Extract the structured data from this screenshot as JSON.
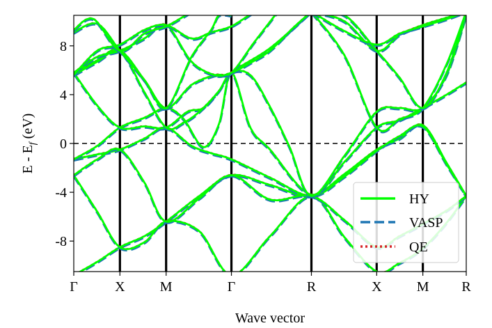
{
  "chart_data": {
    "type": "line",
    "title": "",
    "xlabel": "Wave vector",
    "ylabel_main": "E - E",
    "ylabel_sub": "f",
    "ylabel_unit": " (eV)",
    "ylim": [
      -10.5,
      10.5
    ],
    "xlim": [
      0,
      1
    ],
    "yticks": [
      {
        "value": 8,
        "label": "8"
      },
      {
        "value": 4,
        "label": "4"
      },
      {
        "value": 0,
        "label": "0"
      },
      {
        "value": -4,
        "label": "-4"
      },
      {
        "value": -8,
        "label": "-8"
      }
    ],
    "kpoints": [
      {
        "label": "Γ",
        "pos": 0.0
      },
      {
        "label": "X",
        "pos": 0.1176
      },
      {
        "label": "M",
        "pos": 0.2353
      },
      {
        "label": "Γ",
        "pos": 0.4017
      },
      {
        "label": "R",
        "pos": 0.6055
      },
      {
        "label": "X",
        "pos": 0.7718
      },
      {
        "label": "M",
        "pos": 0.8894
      },
      {
        "label": "R",
        "pos": 1.0
      }
    ],
    "fermi_level": 0,
    "legend": {
      "position": "bottom-right",
      "entries": [
        {
          "name": "HY",
          "color": "#00ff00",
          "style": "solid"
        },
        {
          "name": "VASP",
          "color": "#1f77b4",
          "style": "dashed"
        },
        {
          "name": "QE",
          "color": "#d62728",
          "style": "dotted"
        }
      ]
    },
    "colors": {
      "HY": "#00ff00",
      "VASP": "#1f77b4",
      "QE": "#d62728"
    },
    "bands": [
      {
        "name": "band-1",
        "points": [
          [
            0,
            -10.8
          ],
          [
            0.06,
            -9.7
          ],
          [
            0.1176,
            -8.5
          ],
          [
            0.18,
            -7.6
          ],
          [
            0.2353,
            -6.4
          ],
          [
            0.32,
            -4.3
          ],
          [
            0.4017,
            -2.6
          ],
          [
            0.5,
            -3.4
          ],
          [
            0.6055,
            -4.3
          ],
          [
            0.69,
            -2.5
          ],
          [
            0.7718,
            -0.5
          ],
          [
            0.83,
            0.4
          ],
          [
            0.8894,
            1.5
          ],
          [
            0.95,
            -1.6
          ],
          [
            1.0,
            -4.3
          ]
        ]
      },
      {
        "name": "band-2",
        "points": [
          [
            0,
            -2.6
          ],
          [
            0.06,
            -5.6
          ],
          [
            0.1176,
            -8.5
          ],
          [
            0.18,
            -8.1
          ],
          [
            0.2353,
            -6.4
          ],
          [
            0.32,
            -7.2
          ],
          [
            0.4017,
            -10.8
          ],
          [
            0.5,
            -7.6
          ],
          [
            0.6055,
            -4.3
          ],
          [
            0.69,
            -7.7
          ],
          [
            0.7718,
            -10.5
          ],
          [
            0.83,
            -9.8
          ],
          [
            0.8894,
            -8.6
          ],
          [
            0.95,
            -6.5
          ],
          [
            1.0,
            -4.3
          ]
        ]
      },
      {
        "name": "band-3",
        "points": [
          [
            0,
            -1.3
          ],
          [
            0.06,
            -0.9
          ],
          [
            0.1176,
            -0.5
          ],
          [
            0.18,
            0.4
          ],
          [
            0.2353,
            1.3
          ],
          [
            0.3,
            -0.2
          ],
          [
            0.35,
            -0.8
          ],
          [
            0.4017,
            -1.3
          ],
          [
            0.5,
            -2.8
          ],
          [
            0.6055,
            -4.3
          ],
          [
            0.69,
            -2.7
          ],
          [
            0.7718,
            -0.6
          ],
          [
            0.83,
            0.6
          ],
          [
            0.8894,
            1.4
          ],
          [
            0.95,
            -1.7
          ],
          [
            1.0,
            -4.3
          ]
        ]
      },
      {
        "name": "band-4",
        "points": [
          [
            0,
            -2.6
          ],
          [
            0.06,
            -1.3
          ],
          [
            0.1176,
            -0.5
          ],
          [
            0.18,
            -3.2
          ],
          [
            0.2353,
            -6.4
          ],
          [
            0.32,
            -4.5
          ],
          [
            0.4017,
            -2.6
          ],
          [
            0.5,
            -4.6
          ],
          [
            0.6055,
            -4.3
          ],
          [
            0.69,
            -6.3
          ],
          [
            0.7718,
            -8.5
          ],
          [
            0.83,
            -7.6
          ],
          [
            0.8894,
            -6.6
          ],
          [
            0.95,
            -5.5
          ],
          [
            1.0,
            -4.3
          ]
        ]
      },
      {
        "name": "band-5",
        "points": [
          [
            0,
            -1.3
          ],
          [
            0.06,
            -0.2
          ],
          [
            0.1176,
            1.3
          ],
          [
            0.18,
            2.1
          ],
          [
            0.2353,
            2.9
          ],
          [
            0.28,
            2.0
          ],
          [
            0.33,
            -0.3
          ],
          [
            0.37,
            1.6
          ],
          [
            0.4017,
            5.8
          ],
          [
            0.45,
            1.3
          ],
          [
            0.5,
            -0.5
          ],
          [
            0.6055,
            -4.2
          ],
          [
            0.69,
            -1.5
          ],
          [
            0.7718,
            1.3
          ],
          [
            0.83,
            1.9
          ],
          [
            0.8894,
            2.9
          ],
          [
            0.95,
            4.0
          ],
          [
            1.0,
            5.0
          ]
        ]
      },
      {
        "name": "band-6",
        "points": [
          [
            0,
            5.8
          ],
          [
            0.06,
            3.1
          ],
          [
            0.1176,
            1.3
          ],
          [
            0.18,
            1.4
          ],
          [
            0.2353,
            1.3
          ],
          [
            0.29,
            2.6
          ],
          [
            0.33,
            2.9
          ],
          [
            0.37,
            4.3
          ],
          [
            0.4017,
            5.8
          ],
          [
            0.45,
            5.6
          ],
          [
            0.5,
            3.0
          ],
          [
            0.55,
            -0.3
          ],
          [
            0.6055,
            -4.3
          ],
          [
            0.69,
            -1.0
          ],
          [
            0.7718,
            2.6
          ],
          [
            0.83,
            2.9
          ],
          [
            0.8894,
            2.9
          ],
          [
            0.95,
            5.6
          ],
          [
            1.0,
            10.5
          ]
        ]
      },
      {
        "name": "band-7",
        "points": [
          [
            0,
            5.8
          ],
          [
            0.06,
            6.8
          ],
          [
            0.1176,
            7.6
          ],
          [
            0.18,
            4.2
          ],
          [
            0.2353,
            1.3
          ],
          [
            0.28,
            1.7
          ],
          [
            0.32,
            2.6
          ],
          [
            0.37,
            4.3
          ],
          [
            0.4017,
            5.8
          ],
          [
            0.5,
            7.8
          ],
          [
            0.6055,
            10.8
          ]
        ]
      },
      {
        "name": "band-8",
        "points": [
          [
            0,
            5.6
          ],
          [
            0.06,
            6.7
          ],
          [
            0.1176,
            7.6
          ],
          [
            0.18,
            5.2
          ],
          [
            0.2353,
            2.9
          ],
          [
            0.3,
            4.8
          ],
          [
            0.36,
            5.6
          ],
          [
            0.4017,
            5.8
          ],
          [
            0.46,
            8.3
          ],
          [
            0.52,
            10.8
          ]
        ]
      },
      {
        "name": "band-9",
        "points": [
          [
            0,
            5.8
          ],
          [
            0.06,
            7.1
          ],
          [
            0.1176,
            7.6
          ],
          [
            0.18,
            8.6
          ],
          [
            0.2353,
            9.7
          ],
          [
            0.3,
            6.7
          ],
          [
            0.36,
            5.6
          ],
          [
            0.4017,
            5.8
          ],
          [
            0.45,
            6.6
          ],
          [
            0.5,
            7.6
          ],
          [
            0.56,
            9.5
          ],
          [
            0.6055,
            10.8
          ]
        ]
      },
      {
        "name": "band-10",
        "points": [
          [
            0,
            5.6
          ],
          [
            0.06,
            7.6
          ],
          [
            0.1176,
            8.1
          ],
          [
            0.18,
            9.3
          ],
          [
            0.2353,
            9.7
          ],
          [
            0.3,
            8.6
          ],
          [
            0.35,
            9.1
          ],
          [
            0.4017,
            9.6
          ],
          [
            0.46,
            10.8
          ]
        ]
      },
      {
        "name": "band-11",
        "points": [
          [
            0,
            9.1
          ],
          [
            0.06,
            9.8
          ],
          [
            0.1176,
            7.6
          ],
          [
            0.18,
            5.2
          ],
          [
            0.2353,
            2.9
          ],
          [
            0.3,
            7.1
          ],
          [
            0.35,
            9.3
          ],
          [
            0.37,
            10.5
          ],
          [
            0.4017,
            10.5
          ]
        ]
      },
      {
        "name": "band-12",
        "points": [
          [
            0,
            9.3
          ],
          [
            0.05,
            10.2
          ],
          [
            0.1176,
            7.6
          ],
          [
            0.18,
            9.0
          ],
          [
            0.2353,
            9.6
          ],
          [
            0.28,
            10.4
          ],
          [
            0.3,
            10.8
          ]
        ]
      },
      {
        "name": "band-13",
        "points": [
          [
            0.6055,
            10.8
          ],
          [
            0.69,
            7.2
          ],
          [
            0.7718,
            1.3
          ],
          [
            0.83,
            2.0
          ],
          [
            0.8894,
            2.9
          ],
          [
            0.95,
            6.5
          ],
          [
            1.0,
            10.8
          ]
        ]
      },
      {
        "name": "band-14",
        "points": [
          [
            0.6055,
            10.8
          ],
          [
            0.69,
            10.0
          ],
          [
            0.7718,
            7.6
          ],
          [
            0.83,
            8.9
          ],
          [
            0.8894,
            9.7
          ],
          [
            0.95,
            10.3
          ],
          [
            1.0,
            10.8
          ]
        ]
      },
      {
        "name": "band-15",
        "points": [
          [
            0.6055,
            10.8
          ],
          [
            0.69,
            9.2
          ],
          [
            0.7718,
            8.1
          ],
          [
            0.83,
            9.0
          ],
          [
            0.8894,
            9.6
          ],
          [
            0.95,
            10.2
          ],
          [
            1.0,
            10.8
          ]
        ]
      },
      {
        "name": "band-16",
        "points": [
          [
            0.6055,
            10.8
          ],
          [
            0.69,
            10.5
          ],
          [
            0.7718,
            7.6
          ],
          [
            0.83,
            5.4
          ],
          [
            0.8894,
            2.9
          ],
          [
            0.95,
            5.8
          ],
          [
            1.0,
            10.8
          ]
        ]
      }
    ]
  }
}
